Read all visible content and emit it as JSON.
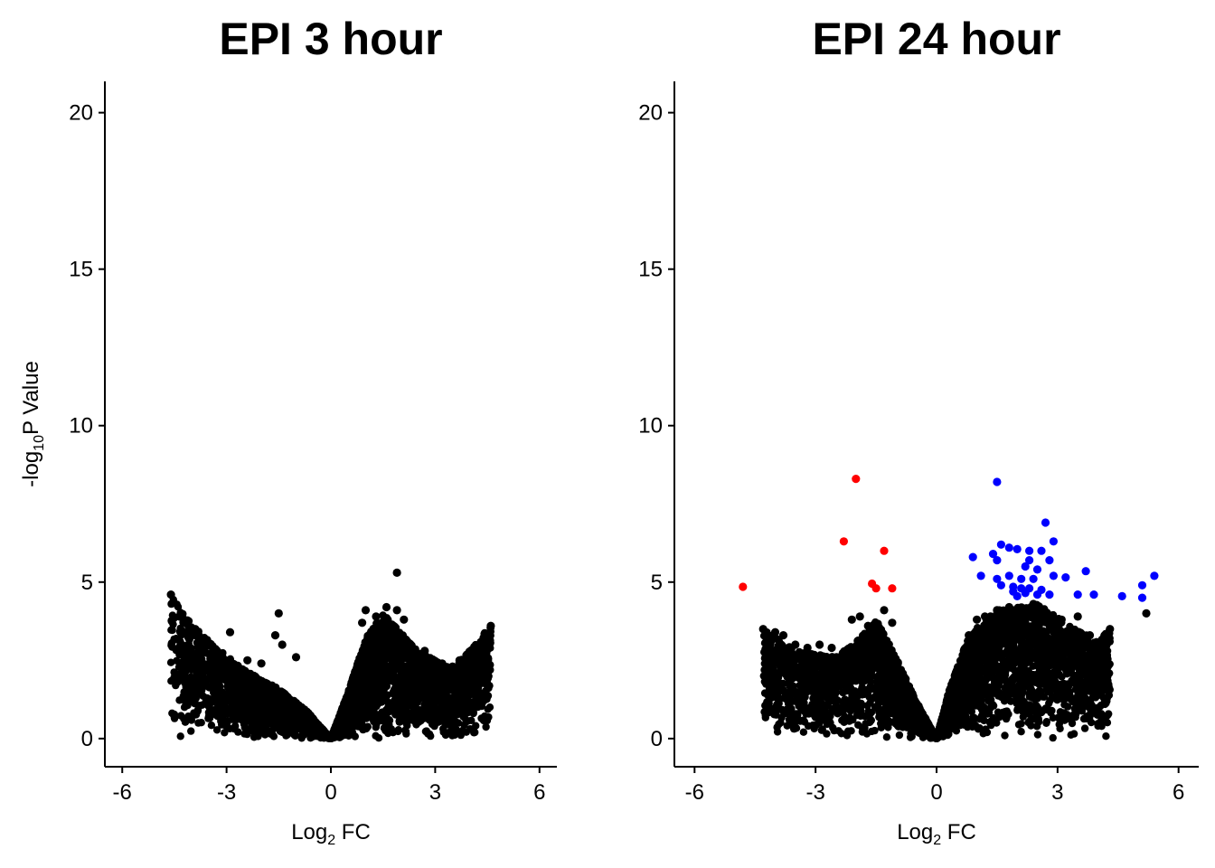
{
  "chart_data": [
    {
      "type": "scatter",
      "title": "EPI 3 hour",
      "xlabel": {
        "base": "Log",
        "sub": "2",
        "rest": " FC"
      },
      "ylabel": {
        "base": "-log",
        "sub": "10",
        "rest": "P Value"
      },
      "xlim": [
        -6.5,
        6.5
      ],
      "ylim": [
        -0.9,
        21
      ],
      "xticks": [
        -6,
        -3,
        0,
        3,
        6
      ],
      "yticks": [
        0,
        5,
        10,
        15,
        20
      ],
      "grid": false,
      "legend": "none",
      "background_cloud": {
        "color": "#000000",
        "approx_envelope_left": [
          [
            -4.6,
            4.6
          ],
          [
            -4.2,
            3.9
          ],
          [
            -3.5,
            3.1
          ],
          [
            -2.5,
            2.2
          ],
          [
            -1.5,
            1.6
          ],
          [
            -0.7,
            0.9
          ],
          [
            0,
            0
          ]
        ],
        "approx_envelope_right": [
          [
            0,
            0
          ],
          [
            0.5,
            1.5
          ],
          [
            1.0,
            3.2
          ],
          [
            1.5,
            4.0
          ],
          [
            2.5,
            2.8
          ],
          [
            3.5,
            2.2
          ],
          [
            4.6,
            3.6
          ]
        ]
      },
      "series": [
        {
          "color": "#000000",
          "points": [
            [
              -4.6,
              4.6
            ],
            [
              -4.3,
              3.9
            ],
            [
              -4.2,
              3.7
            ],
            [
              -3.9,
              3.5
            ],
            [
              -3.8,
              3.3
            ],
            [
              -3.7,
              3.1
            ],
            [
              -2.9,
              3.4
            ],
            [
              -1.5,
              4.0
            ],
            [
              -1.4,
              3.0
            ],
            [
              -1.6,
              3.3
            ],
            [
              -1.0,
              2.6
            ],
            [
              -2.0,
              2.4
            ],
            [
              -2.4,
              2.5
            ],
            [
              0.9,
              3.7
            ],
            [
              1.0,
              4.1
            ],
            [
              1.3,
              3.9
            ],
            [
              1.6,
              4.2
            ],
            [
              1.9,
              4.1
            ],
            [
              1.9,
              5.3
            ],
            [
              2.1,
              3.8
            ],
            [
              2.7,
              2.8
            ],
            [
              3.2,
              2.4
            ],
            [
              3.5,
              2.3
            ],
            [
              3.7,
              2.5
            ],
            [
              4.0,
              2.7
            ],
            [
              4.2,
              2.6
            ],
            [
              4.6,
              3.6
            ]
          ]
        }
      ]
    },
    {
      "type": "scatter",
      "title": "EPI 24 hour",
      "xlabel": {
        "base": "Log",
        "sub": "2",
        "rest": " FC"
      },
      "ylabel": null,
      "xlim": [
        -6.5,
        6.5
      ],
      "ylim": [
        -0.9,
        21
      ],
      "xticks": [
        -6,
        -3,
        0,
        3,
        6
      ],
      "yticks": [
        0,
        5,
        10,
        15,
        20
      ],
      "grid": false,
      "legend": "none",
      "background_cloud": {
        "color": "#000000",
        "approx_envelope_left": [
          [
            -4.3,
            3.5
          ],
          [
            -3.5,
            2.8
          ],
          [
            -2.5,
            2.6
          ],
          [
            -2.0,
            3.1
          ],
          [
            -1.5,
            3.8
          ],
          [
            -1.0,
            2.6
          ],
          [
            -0.5,
            1.2
          ],
          [
            0,
            0
          ]
        ],
        "approx_envelope_right": [
          [
            0,
            0
          ],
          [
            0.3,
            1.5
          ],
          [
            0.8,
            3.3
          ],
          [
            1.5,
            4.1
          ],
          [
            2.5,
            4.3
          ],
          [
            3.3,
            3.6
          ],
          [
            4.0,
            3.1
          ],
          [
            4.3,
            3.5
          ]
        ]
      },
      "series": [
        {
          "color": "#000000",
          "points": [
            [
              -4.3,
              3.5
            ],
            [
              -4.0,
              3.4
            ],
            [
              -3.8,
              3.3
            ],
            [
              -3.5,
              3.0
            ],
            [
              -3.2,
              2.9
            ],
            [
              -2.9,
              3.0
            ],
            [
              -2.6,
              2.9
            ],
            [
              -2.1,
              3.8
            ],
            [
              -1.9,
              3.9
            ],
            [
              -1.7,
              3.6
            ],
            [
              -1.5,
              3.4
            ],
            [
              -1.3,
              4.1
            ],
            [
              -1.1,
              3.7
            ],
            [
              -1.6,
              3.2
            ],
            [
              0.8,
              3.3
            ],
            [
              1.0,
              3.8
            ],
            [
              1.2,
              3.9
            ],
            [
              1.5,
              4.1
            ],
            [
              1.8,
              4.2
            ],
            [
              2.0,
              4.0
            ],
            [
              2.4,
              4.3
            ],
            [
              2.8,
              3.9
            ],
            [
              3.1,
              3.8
            ],
            [
              3.5,
              3.9
            ],
            [
              3.8,
              3.3
            ],
            [
              4.1,
              3.0
            ],
            [
              4.3,
              3.5
            ],
            [
              5.2,
              4.0
            ]
          ]
        },
        {
          "color": "#ff0000",
          "points": [
            [
              -4.8,
              4.85
            ],
            [
              -2.0,
              8.3
            ],
            [
              -2.3,
              6.3
            ],
            [
              -1.3,
              6.0
            ],
            [
              -1.6,
              4.95
            ],
            [
              -1.5,
              4.8
            ],
            [
              -1.1,
              4.8
            ]
          ]
        },
        {
          "color": "#0000ff",
          "points": [
            [
              1.5,
              8.2
            ],
            [
              2.7,
              6.9
            ],
            [
              2.9,
              6.3
            ],
            [
              1.6,
              6.2
            ],
            [
              1.8,
              6.1
            ],
            [
              2.0,
              6.05
            ],
            [
              2.3,
              6.0
            ],
            [
              2.6,
              6.0
            ],
            [
              1.4,
              5.9
            ],
            [
              0.9,
              5.8
            ],
            [
              1.5,
              5.7
            ],
            [
              2.3,
              5.7
            ],
            [
              2.8,
              5.7
            ],
            [
              2.2,
              5.5
            ],
            [
              2.5,
              5.4
            ],
            [
              1.1,
              5.2
            ],
            [
              1.5,
              5.1
            ],
            [
              1.8,
              5.2
            ],
            [
              2.1,
              5.1
            ],
            [
              2.4,
              5.1
            ],
            [
              2.9,
              5.2
            ],
            [
              3.2,
              5.15
            ],
            [
              3.7,
              5.35
            ],
            [
              1.6,
              4.9
            ],
            [
              1.9,
              4.85
            ],
            [
              2.1,
              4.8
            ],
            [
              2.3,
              4.8
            ],
            [
              2.6,
              4.75
            ],
            [
              1.9,
              4.7
            ],
            [
              2.2,
              4.65
            ],
            [
              2.5,
              4.6
            ],
            [
              2.0,
              4.55
            ],
            [
              2.8,
              4.6
            ],
            [
              3.5,
              4.6
            ],
            [
              3.9,
              4.6
            ],
            [
              4.6,
              4.55
            ],
            [
              5.1,
              4.9
            ],
            [
              5.1,
              4.5
            ],
            [
              5.4,
              5.2
            ]
          ]
        }
      ]
    }
  ]
}
